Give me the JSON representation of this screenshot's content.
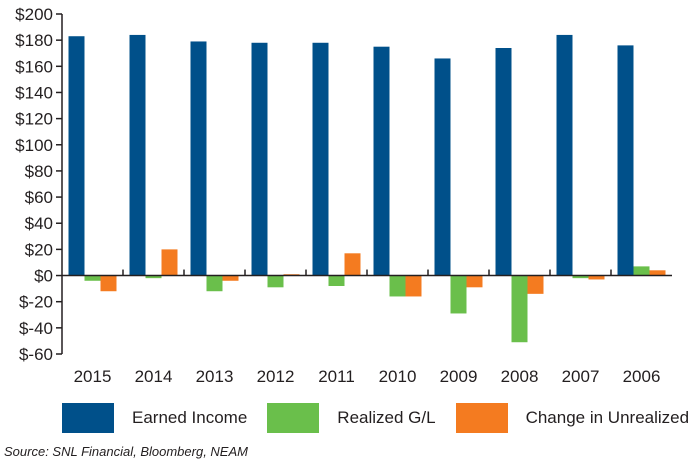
{
  "chart_data": {
    "type": "bar",
    "categories": [
      "2015",
      "2014",
      "2013",
      "2012",
      "2011",
      "2010",
      "2009",
      "2008",
      "2007",
      "2006"
    ],
    "series": [
      {
        "name": "Earned Income",
        "color": "#00508a",
        "values": [
          183,
          184,
          179,
          178,
          178,
          175,
          166,
          174,
          184,
          176
        ]
      },
      {
        "name": "Realized G/L",
        "color": "#6abf4b",
        "values": [
          -4,
          -2,
          -12,
          -9,
          -8,
          -16,
          -29,
          -51,
          -2,
          7
        ]
      },
      {
        "name": "Change in Unrealized G/L",
        "color": "#f47b20",
        "values": [
          -12,
          20,
          -4,
          1,
          17,
          -16,
          -9,
          -14,
          -3,
          4
        ]
      }
    ],
    "yticks": [
      "$200",
      "$180",
      "$160",
      "$140",
      "$120",
      "$100",
      "$80",
      "$60",
      "$40",
      "$20",
      "$0",
      "$-20",
      "$-40",
      "$-60"
    ],
    "ylim": [
      -60,
      200
    ],
    "legend_position": "bottom",
    "grid": false,
    "source": "Source: SNL Financial, Bloomberg, NEAM"
  }
}
